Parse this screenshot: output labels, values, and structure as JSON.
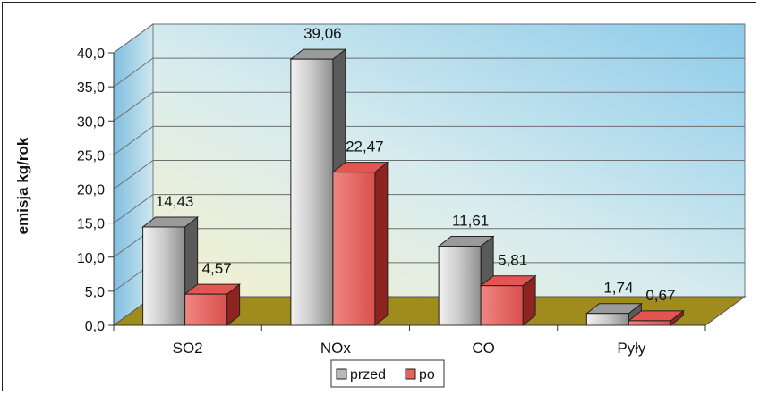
{
  "chart_data": {
    "type": "bar",
    "ylabel": "emisja kg/rok",
    "ylim": [
      0,
      40
    ],
    "yticks": [
      "0,0",
      "5,0",
      "10,0",
      "15,0",
      "20,0",
      "25,0",
      "30,0",
      "35,0",
      "40,0"
    ],
    "grid": true,
    "legend_position": "bottom",
    "categories": [
      "SO2",
      "NOx",
      "CO",
      "Pyły"
    ],
    "series": [
      {
        "name": "przed",
        "values": [
          14.43,
          39.06,
          11.61,
          1.74
        ],
        "labels": [
          "14,43",
          "39,06",
          "11,61",
          "1,74"
        ],
        "color": "#b8b8b8"
      },
      {
        "name": "po",
        "values": [
          4.57,
          22.47,
          5.81,
          0.67
        ],
        "labels": [
          "4,57",
          "22,47",
          "5,81",
          "0,67"
        ],
        "color": "#e8605c"
      }
    ],
    "colors": {
      "floor": "#a08c1c",
      "wall_top": "#8ccbea",
      "wall_bottom": "#f4f1cc"
    }
  }
}
